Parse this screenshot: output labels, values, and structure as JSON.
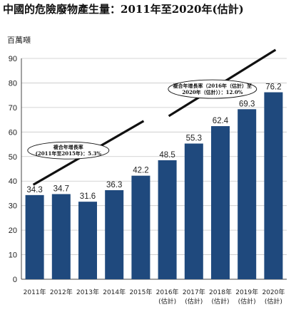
{
  "title": "中國的危險廢物產生量：2011年至2020年(估計)",
  "chart_data": {
    "type": "bar",
    "title": "中國的危險廢物產生量：2011年至2020年(估計)",
    "ylabel": "百萬噸",
    "ylim": [
      0,
      90
    ],
    "yticks": [
      0,
      10,
      20,
      30,
      40,
      50,
      60,
      70,
      80,
      90
    ],
    "grid": true,
    "categories": [
      [
        "2011年"
      ],
      [
        "2012年"
      ],
      [
        "2013年"
      ],
      [
        "2014年"
      ],
      [
        "2015年"
      ],
      [
        "2016年",
        "(估計)"
      ],
      [
        "2017年",
        "(估計)"
      ],
      [
        "2018年",
        "(估計)"
      ],
      [
        "2019年",
        "(估計)"
      ],
      [
        "2020年",
        "(估計)"
      ]
    ],
    "values": [
      34.3,
      34.7,
      31.6,
      36.3,
      42.2,
      48.5,
      55.3,
      62.4,
      69.3,
      76.2
    ],
    "value_labels": [
      "34.3",
      "34.7",
      "31.6",
      "36.3",
      "42.2",
      "48.5",
      "55.3",
      "62.4",
      "69.3",
      "76.2"
    ],
    "bar_color": "#1f497d",
    "annotations": [
      {
        "lines": [
          "複合年增長率",
          "(2011年至2015年)：5.3%"
        ]
      },
      {
        "lines": [
          "複合年增長率（2016年（估計）至",
          "2020年（估計））：12.0%"
        ]
      }
    ]
  }
}
